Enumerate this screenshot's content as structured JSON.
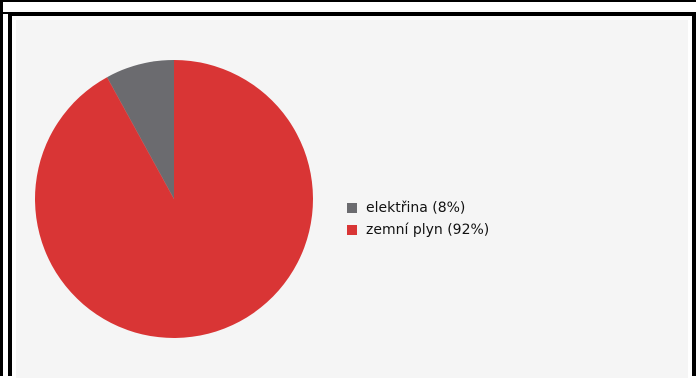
{
  "chart_data": {
    "type": "pie",
    "title": "",
    "slices": [
      {
        "label": "elektřina (8%)",
        "value": 8,
        "color": "#6b6b6f"
      },
      {
        "label": "zemní plyn (92%)",
        "value": 92,
        "color": "#d93535"
      }
    ],
    "legend": {
      "position": "right",
      "items": [
        {
          "label": "elektřina (8%)",
          "color": "#6b6b6f"
        },
        {
          "label": "zemní plyn (92%)",
          "color": "#d93535"
        }
      ]
    }
  },
  "colors": {
    "background": "#f5f5f5",
    "frame": "#000000"
  }
}
